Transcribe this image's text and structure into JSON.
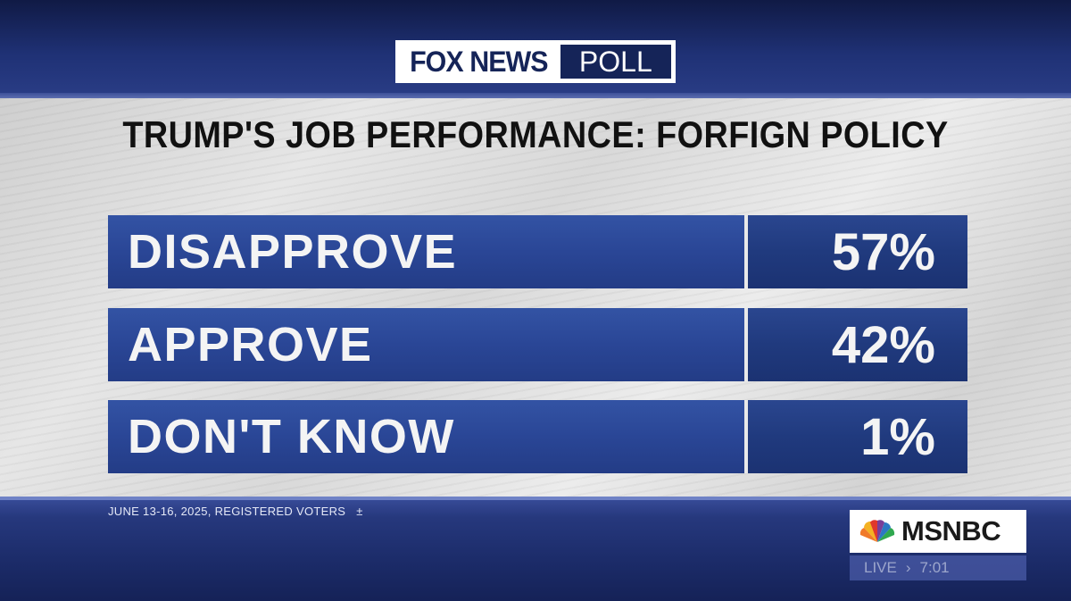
{
  "header": {
    "logo_brand": "FOX NEWS",
    "logo_sub": "POLL"
  },
  "title": "TRUMP'S JOB PERFORMANCE: FORFIGN POLICY",
  "poll": {
    "rows": [
      {
        "label": "DISAPPROVE",
        "value": "57%"
      },
      {
        "label": "APPROVE",
        "value": "42%"
      },
      {
        "label": "DON'T KNOW",
        "value": "1%"
      }
    ]
  },
  "footer": {
    "note": "JUNE 13-16, 2025, REGISTERED VOTERS",
    "note_symbol": "±"
  },
  "network": {
    "name": "MSNBC",
    "live": "LIVE",
    "arrow": "›",
    "time": "7:01"
  },
  "colors": {
    "bar_label": "#2a4696",
    "bar_value": "#203a7e",
    "panel": "#e2e2e2",
    "band": "#1f3175"
  }
}
